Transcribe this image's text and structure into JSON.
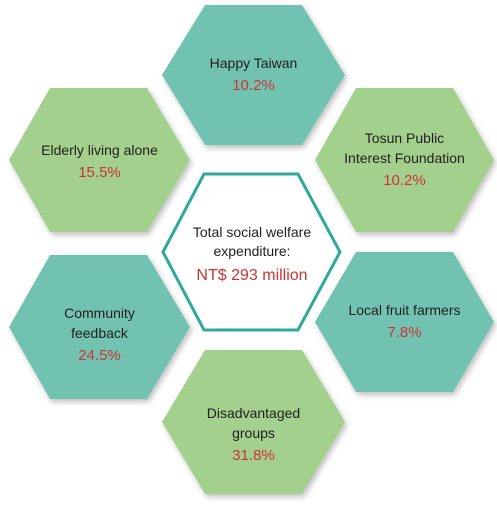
{
  "center": {
    "label": "Total social welfare\nexpenditure:",
    "value": "NT$ 293 million"
  },
  "segments": [
    {
      "label": "Happy Taiwan",
      "value": "10.2%",
      "color": "#72c2b2"
    },
    {
      "label": "Tosun Public\nInterest Foundation",
      "value": "10.2%",
      "color": "#a3d08c"
    },
    {
      "label": "Local fruit farmers",
      "value": "7.8%",
      "color": "#72c2b2"
    },
    {
      "label": "Disadvantaged\ngroups",
      "value": "31.8%",
      "color": "#a3d08c"
    },
    {
      "label": "Community\nfeedback",
      "value": "24.5%",
      "color": "#72c2b2"
    },
    {
      "label": "Elderly living alone",
      "value": "15.5%",
      "color": "#a3d08c"
    }
  ],
  "colors": {
    "center_border": "#2ea99a",
    "value_text": "#cc3333"
  }
}
